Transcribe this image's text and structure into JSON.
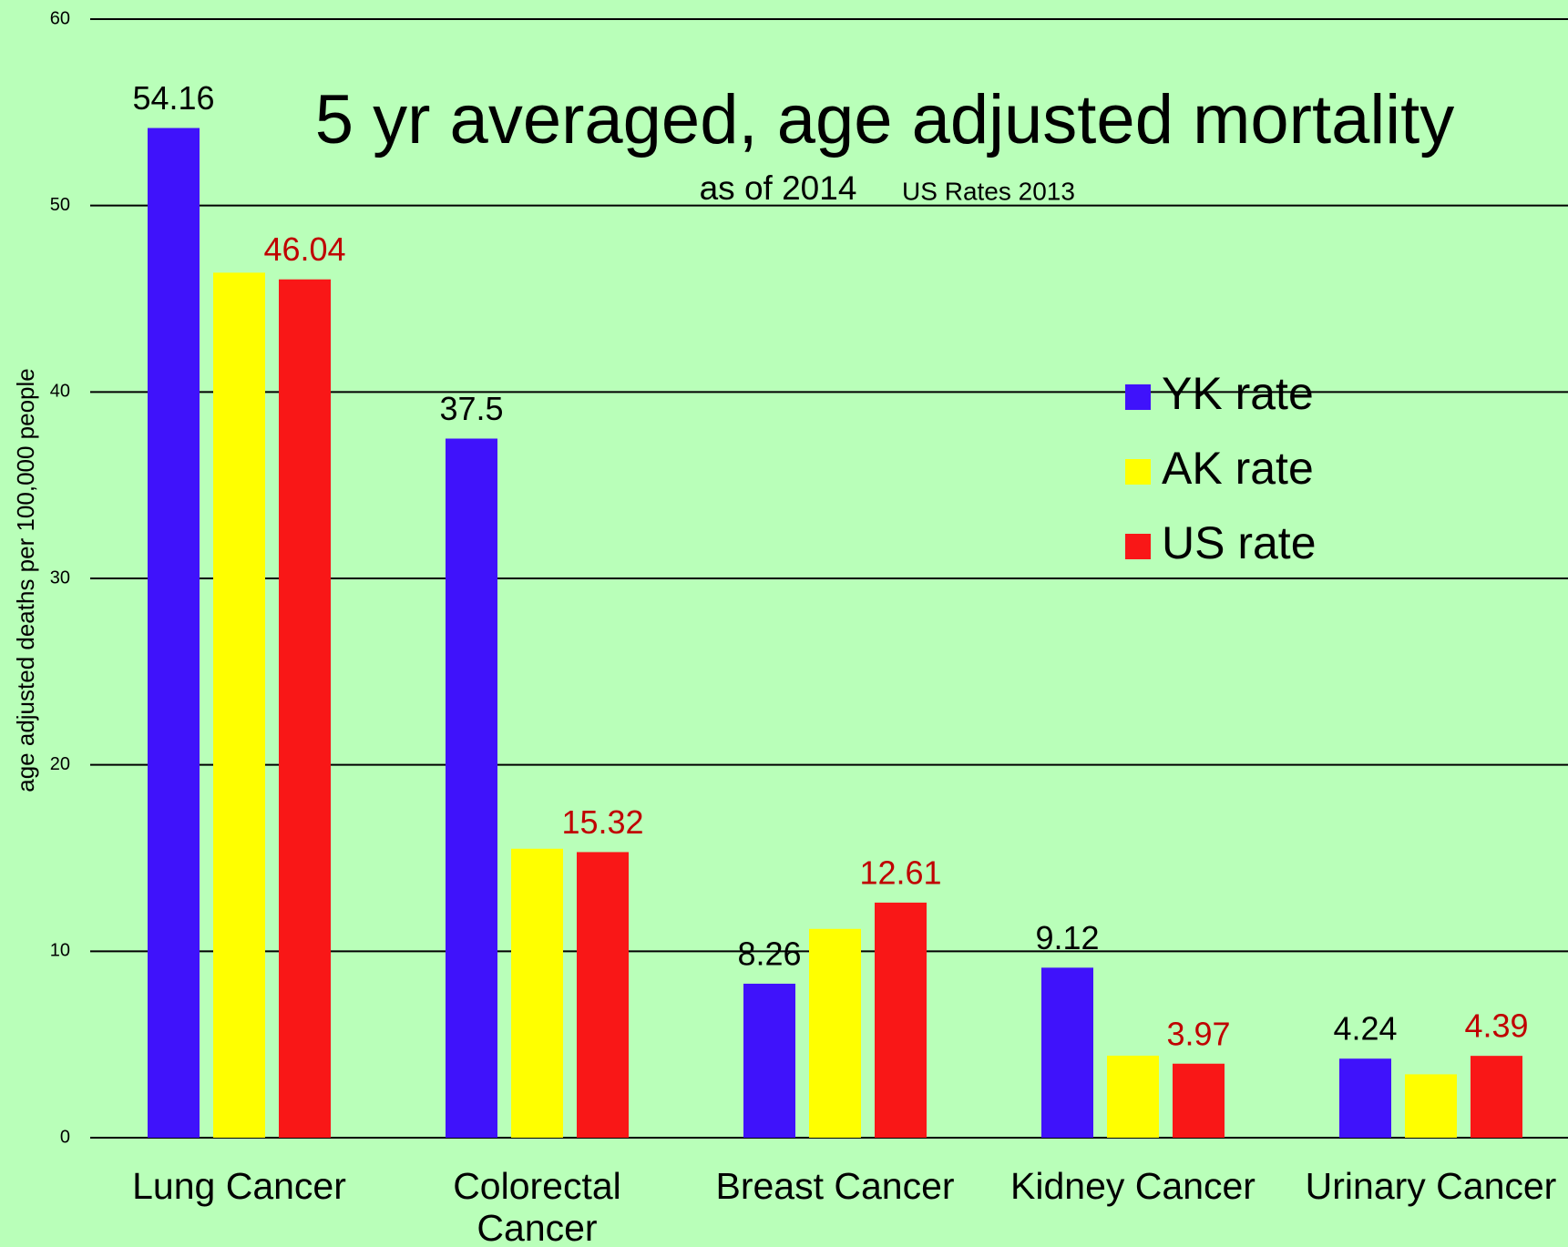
{
  "chart_data": {
    "type": "bar",
    "title": "5 yr averaged, age adjusted mortality",
    "subtitle": "as of 2014",
    "subtitle_note": "US Rates 2013",
    "y_label": "age adjusted deaths per 100,000 people",
    "categories": [
      "Lung Cancer",
      "Colorectal Cancer",
      "Breast Cancer",
      "Kidney Cancer",
      "Urinary Cancer"
    ],
    "series": [
      {
        "name": "YK rate",
        "color": "#3f12fb",
        "values": [
          54.16,
          37.5,
          8.26,
          9.12,
          4.24
        ],
        "data_labels": true,
        "label_color": "#000000"
      },
      {
        "name": "AK rate",
        "color": "#ffff00",
        "values": [
          46.4,
          15.5,
          11.2,
          4.4,
          3.4
        ],
        "data_labels": false,
        "label_color": "#000000"
      },
      {
        "name": "US rate",
        "color": "#f91717",
        "values": [
          46.04,
          15.32,
          12.61,
          3.97,
          4.39
        ],
        "data_labels": true,
        "label_color": "#c00000"
      }
    ],
    "ylim": [
      0,
      60
    ],
    "yticks": [
      0,
      10,
      20,
      30,
      40,
      50,
      60
    ],
    "grid": true,
    "legend_position": "right"
  }
}
